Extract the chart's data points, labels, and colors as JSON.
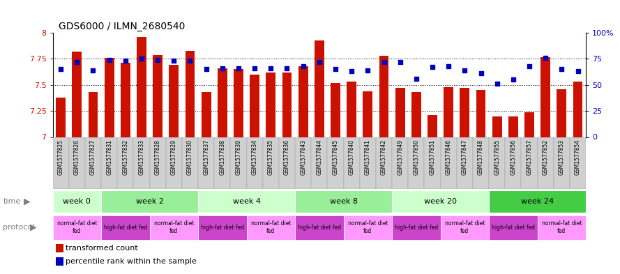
{
  "title": "GDS6000 / ILMN_2680540",
  "samples": [
    "GSM1577825",
    "GSM1577826",
    "GSM1577827",
    "GSM1577831",
    "GSM1577832",
    "GSM1577833",
    "GSM1577828",
    "GSM1577829",
    "GSM1577830",
    "GSM1577837",
    "GSM1577838",
    "GSM1577839",
    "GSM1577834",
    "GSM1577835",
    "GSM1577836",
    "GSM1577843",
    "GSM1577844",
    "GSM1577845",
    "GSM1577840",
    "GSM1577841",
    "GSM1577842",
    "GSM1577849",
    "GSM1577850",
    "GSM1577851",
    "GSM1577846",
    "GSM1577847",
    "GSM1577848",
    "GSM1577855",
    "GSM1577856",
    "GSM1577857",
    "GSM1577852",
    "GSM1577853",
    "GSM1577854"
  ],
  "red_values": [
    7.38,
    7.82,
    7.43,
    7.76,
    7.71,
    7.96,
    7.79,
    7.69,
    7.83,
    7.43,
    7.66,
    7.65,
    7.6,
    7.62,
    7.62,
    7.68,
    7.93,
    7.52,
    7.53,
    7.44,
    7.78,
    7.47,
    7.43,
    7.21,
    7.48,
    7.47,
    7.45,
    7.2,
    7.2,
    7.24,
    7.77,
    7.46,
    7.53
  ],
  "blue_values": [
    65,
    72,
    64,
    74,
    73,
    75,
    74,
    73,
    73,
    65,
    66,
    66,
    66,
    66,
    66,
    68,
    72,
    65,
    63,
    64,
    72,
    72,
    56,
    67,
    68,
    64,
    61,
    51,
    55,
    68,
    76,
    65,
    63
  ],
  "ylim_left": [
    7.0,
    8.0
  ],
  "ylim_right": [
    0,
    100
  ],
  "yticks_left": [
    7.0,
    7.25,
    7.5,
    7.75,
    8.0
  ],
  "ytick_labels_left": [
    "7",
    "7.25",
    "7.5",
    "7.75",
    "8"
  ],
  "yticks_right": [
    0,
    25,
    50,
    75,
    100
  ],
  "ytick_labels_right": [
    "0",
    "25",
    "50",
    "75",
    "100%"
  ],
  "bar_color": "#cc1100",
  "dot_color": "#0000bb",
  "grid_color": "#000000",
  "tick_label_bg": "#cccccc",
  "time_groups": [
    {
      "label": "week 0",
      "start": 0,
      "end": 3,
      "color": "#ccffcc"
    },
    {
      "label": "week 2",
      "start": 3,
      "end": 9,
      "color": "#99ee99"
    },
    {
      "label": "week 4",
      "start": 9,
      "end": 15,
      "color": "#ccffcc"
    },
    {
      "label": "week 8",
      "start": 15,
      "end": 21,
      "color": "#99ee99"
    },
    {
      "label": "week 20",
      "start": 21,
      "end": 27,
      "color": "#ccffcc"
    },
    {
      "label": "week 24",
      "start": 27,
      "end": 33,
      "color": "#44cc44"
    }
  ],
  "protocol_groups": [
    {
      "label": "normal-fat diet\nfed",
      "start": 0,
      "end": 3,
      "color": "#ff99ff"
    },
    {
      "label": "high-fat diet fed",
      "start": 3,
      "end": 6,
      "color": "#cc44cc"
    },
    {
      "label": "normal-fat diet\nfed",
      "start": 6,
      "end": 9,
      "color": "#ff99ff"
    },
    {
      "label": "high-fat diet fed",
      "start": 9,
      "end": 12,
      "color": "#cc44cc"
    },
    {
      "label": "normal-fat diet\nfed",
      "start": 12,
      "end": 15,
      "color": "#ff99ff"
    },
    {
      "label": "high-fat diet fed",
      "start": 15,
      "end": 18,
      "color": "#cc44cc"
    },
    {
      "label": "normal-fat diet\nfed",
      "start": 18,
      "end": 21,
      "color": "#ff99ff"
    },
    {
      "label": "high-fat diet fed",
      "start": 21,
      "end": 24,
      "color": "#cc44cc"
    },
    {
      "label": "normal-fat diet\nfed",
      "start": 24,
      "end": 27,
      "color": "#ff99ff"
    },
    {
      "label": "high-fat diet fed",
      "start": 27,
      "end": 30,
      "color": "#cc44cc"
    },
    {
      "label": "normal-fat diet\nfed",
      "start": 30,
      "end": 33,
      "color": "#ff99ff"
    }
  ],
  "legend_items": [
    {
      "label": "transformed count",
      "color": "#cc1100"
    },
    {
      "label": "percentile rank within the sample",
      "color": "#0000bb"
    }
  ]
}
